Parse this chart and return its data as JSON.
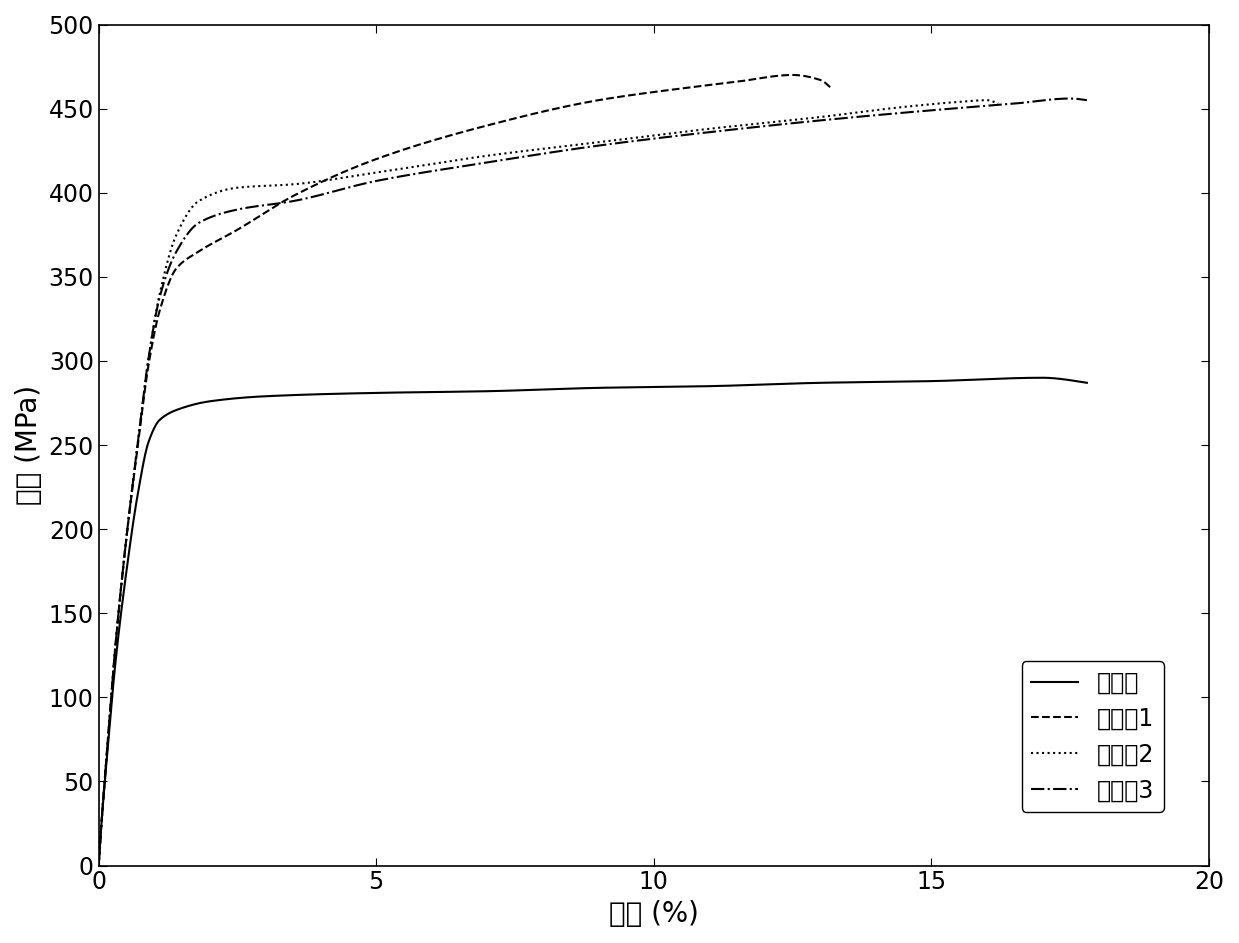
{
  "ylabel": "应力 (MPa)",
  "xlabel": "应变 (%)",
  "xlim": [
    0,
    20
  ],
  "ylim": [
    0,
    500
  ],
  "xticks": [
    0,
    5,
    10,
    15,
    20
  ],
  "yticks": [
    0,
    50,
    100,
    150,
    200,
    250,
    300,
    350,
    400,
    450,
    500
  ],
  "legend_labels": [
    "对比例",
    "实施例1",
    "实施例2",
    "实施例3"
  ],
  "line_styles": [
    "-",
    "--",
    ":",
    "-."
  ],
  "line_color": "#000000",
  "line_width": 1.5,
  "curves": {
    "control": {
      "x": [
        0,
        0.05,
        0.15,
        0.3,
        0.5,
        0.7,
        0.9,
        1.1,
        1.5,
        2.0,
        3.0,
        5.0,
        7.0,
        9.0,
        11.0,
        13.0,
        15.0,
        17.0,
        17.8
      ],
      "y": [
        0,
        25,
        65,
        120,
        175,
        220,
        252,
        265,
        272,
        276,
        279,
        281,
        282,
        284,
        285,
        287,
        288,
        290,
        287
      ]
    },
    "example1": {
      "x": [
        0,
        0.05,
        0.15,
        0.3,
        0.5,
        0.7,
        0.9,
        1.1,
        1.4,
        1.8,
        2.5,
        3.5,
        5.0,
        7.0,
        9.0,
        10.5,
        11.5,
        12.5,
        13.0,
        13.2
      ],
      "y": [
        0,
        25,
        68,
        130,
        195,
        248,
        298,
        330,
        355,
        365,
        378,
        398,
        420,
        440,
        455,
        462,
        466,
        470,
        467,
        462
      ]
    },
    "example2": {
      "x": [
        0,
        0.05,
        0.15,
        0.3,
        0.5,
        0.7,
        0.9,
        1.1,
        1.4,
        1.8,
        2.5,
        3.5,
        5.0,
        7.0,
        9.0,
        11.0,
        13.0,
        14.5,
        15.5,
        16.0,
        16.2
      ],
      "y": [
        0,
        25,
        68,
        130,
        195,
        250,
        302,
        340,
        375,
        395,
        403,
        405,
        412,
        422,
        430,
        438,
        445,
        451,
        454,
        455,
        453
      ]
    },
    "example3": {
      "x": [
        0,
        0.05,
        0.15,
        0.3,
        0.5,
        0.7,
        0.9,
        1.1,
        1.4,
        1.8,
        2.5,
        3.5,
        5.0,
        7.0,
        9.0,
        11.0,
        13.0,
        15.0,
        16.5,
        17.5,
        17.8
      ],
      "y": [
        0,
        25,
        68,
        130,
        195,
        250,
        302,
        338,
        365,
        382,
        390,
        395,
        407,
        418,
        428,
        436,
        443,
        449,
        453,
        456,
        455
      ]
    }
  },
  "font_size_labels": 20,
  "font_size_ticks": 17,
  "font_size_legend": 17,
  "figure_facecolor": "#ffffff",
  "axes_facecolor": "#ffffff"
}
